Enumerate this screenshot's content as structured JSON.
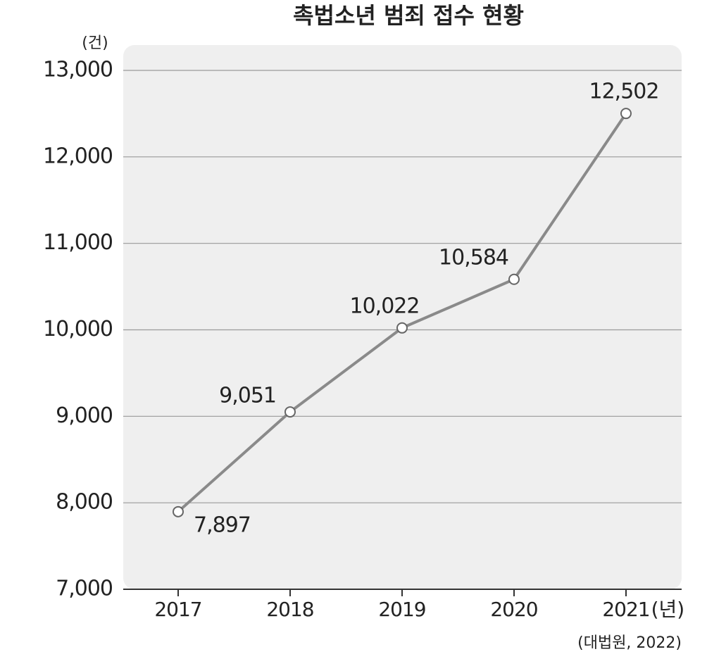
{
  "chart_data": {
    "type": "line",
    "title": "촉법소년 범죄 접수 현황",
    "y_unit": "(건)",
    "x_unit": "(년)",
    "source": "(대법원, 2022)",
    "categories": [
      "2017",
      "2018",
      "2019",
      "2020",
      "2021"
    ],
    "series": [
      {
        "name": "촉법소년 범죄 접수",
        "color": "#8a8a8a",
        "values": [
          7897,
          9051,
          10022,
          10584,
          12502
        ],
        "value_labels": [
          "7,897",
          "9,051",
          "10,022",
          "10,584",
          "12,502"
        ]
      }
    ],
    "ylim": [
      7000,
      13000
    ],
    "yticks": [
      {
        "value": 7000,
        "label": "7,000"
      },
      {
        "value": 8000,
        "label": "8,000"
      },
      {
        "value": 9000,
        "label": "9,000"
      },
      {
        "value": 10000,
        "label": "10,000"
      },
      {
        "value": 11000,
        "label": "11,000"
      },
      {
        "value": 12000,
        "label": "12,000"
      },
      {
        "value": 13000,
        "label": "13,000"
      }
    ],
    "grid": true
  }
}
